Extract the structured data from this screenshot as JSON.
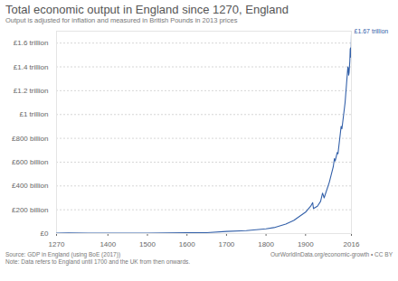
{
  "chart_data": {
    "type": "line",
    "title": "Total economic output in England since 1270, England",
    "subtitle": "Output is adjusted for inflation and measured in British Pounds in 2013 prices",
    "source": "Source: GDP in England (using BoE (2017))",
    "note": "Note: Data refers to England until 1700 and the UK from then onwards.",
    "credit": "OurWorldInData.org/economic-growth • CC BY",
    "x": [
      1270,
      1300,
      1350,
      1400,
      1450,
      1500,
      1550,
      1600,
      1650,
      1700,
      1750,
      1800,
      1820,
      1850,
      1870,
      1900,
      1913,
      1918,
      1920,
      1930,
      1938,
      1943,
      1947,
      1950,
      1960,
      1970,
      1973,
      1975,
      1980,
      1982,
      1990,
      1992,
      2000,
      2007,
      2008,
      2009,
      2010,
      2012,
      2013,
      2014,
      2015,
      2016
    ],
    "series": [
      {
        "name": "GDP",
        "color": "#3360a9",
        "values": [
          4,
          4.5,
          3.5,
          3.5,
          3.5,
          4,
          5,
          6.5,
          8,
          18,
          25,
          40,
          50,
          80,
          110,
          180,
          230,
          260,
          210,
          230,
          270,
          340,
          300,
          330,
          430,
          560,
          630,
          610,
          680,
          670,
          900,
          880,
          1100,
          1400,
          1390,
          1330,
          1350,
          1450,
          1550,
          1560,
          1480,
          1670
        ]
      }
    ],
    "xlim": [
      1270,
      2016
    ],
    "xticks": [
      1270,
      1400,
      1500,
      1600,
      1700,
      1800,
      1900,
      2016
    ],
    "ylim": [
      0,
      1700
    ],
    "yticks": [
      {
        "value": 0,
        "label": "£0"
      },
      {
        "value": 200,
        "label": "£200 billion"
      },
      {
        "value": 400,
        "label": "£400 billion"
      },
      {
        "value": 600,
        "label": "£600 billion"
      },
      {
        "value": 800,
        "label": "£800 billion"
      },
      {
        "value": 1000,
        "label": "£1 trillion"
      },
      {
        "value": 1200,
        "label": "£1.2 trillion"
      },
      {
        "value": 1400,
        "label": "£1.4 trillion"
      },
      {
        "value": 1600,
        "label": "£1.6 trillion"
      }
    ],
    "grid": true,
    "annotations": [
      {
        "x": 2016,
        "y": 1670,
        "text": "£1.67 trillion"
      }
    ]
  }
}
